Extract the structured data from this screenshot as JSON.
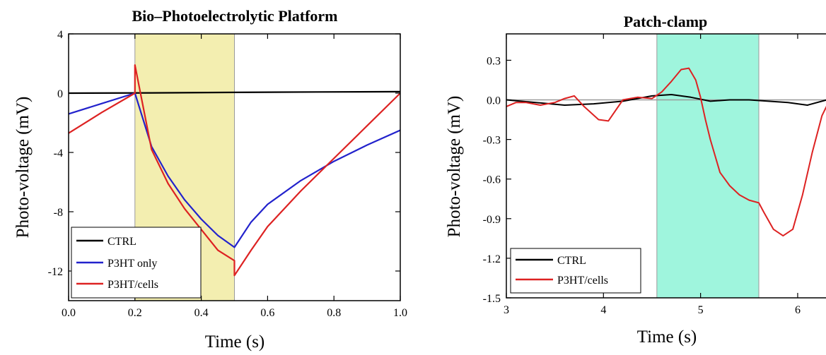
{
  "chart_data": [
    {
      "type": "line",
      "title": "Bio–Photoelectrolytic Platform",
      "xlabel": "Time (s)",
      "ylabel": "Photo-voltage (mV)",
      "xlim": [
        0.0,
        1.0
      ],
      "ylim": [
        -14,
        4
      ],
      "xticks": [
        "0.0",
        "0.2",
        "0.4",
        "0.6",
        "0.8",
        "1.0"
      ],
      "yticks": [
        "4",
        "0",
        "-4",
        "-8",
        "-12"
      ],
      "xtick_values": [
        0.0,
        0.2,
        0.4,
        0.6,
        0.8,
        1.0
      ],
      "ytick_values": [
        4,
        0,
        -4,
        -8,
        -12
      ],
      "grid": false,
      "legend_position": "bottom-left",
      "shaded_region": {
        "x0": 0.2,
        "x1": 0.5,
        "color": "#f3eeb0"
      },
      "series": [
        {
          "name": "CTRL",
          "color": "#000000",
          "x": [
            0.0,
            0.25,
            0.5,
            0.75,
            1.0
          ],
          "y": [
            0.0,
            0.02,
            0.05,
            0.08,
            0.1
          ]
        },
        {
          "name": "P3HT only",
          "color": "#2222cc",
          "x": [
            0.0,
            0.1,
            0.2,
            0.2,
            0.25,
            0.3,
            0.35,
            0.4,
            0.45,
            0.5,
            0.5,
            0.55,
            0.6,
            0.7,
            0.8,
            0.9,
            1.0
          ],
          "y": [
            -1.4,
            -0.7,
            0.0,
            0.0,
            -3.6,
            -5.6,
            -7.2,
            -8.5,
            -9.6,
            -10.4,
            -10.4,
            -8.7,
            -7.5,
            -5.9,
            -4.6,
            -3.5,
            -2.5
          ]
        },
        {
          "name": "P3HT/cells",
          "color": "#dd2222",
          "x": [
            0.0,
            0.1,
            0.2,
            0.2,
            0.25,
            0.3,
            0.35,
            0.4,
            0.45,
            0.5,
            0.5,
            0.55,
            0.6,
            0.7,
            0.8,
            0.9,
            1.0
          ],
          "y": [
            -2.7,
            -1.3,
            0.0,
            1.9,
            -3.8,
            -6.1,
            -7.8,
            -9.2,
            -10.6,
            -11.3,
            -12.3,
            -10.6,
            -9.0,
            -6.6,
            -4.4,
            -2.2,
            0.0
          ]
        }
      ]
    },
    {
      "type": "line",
      "title": "Patch-clamp",
      "xlabel": "Time (s)",
      "ylabel": "Photo-voltage (mV)",
      "xlim": [
        3.0,
        6.35
      ],
      "ylim": [
        -1.5,
        0.5
      ],
      "xticks": [
        "3",
        "4",
        "5",
        "6"
      ],
      "yticks": [
        "0.3",
        "0.0",
        "-0.3",
        "-0.6",
        "-0.9",
        "-1.2",
        "-1.5"
      ],
      "xtick_values": [
        3,
        4,
        5,
        6
      ],
      "ytick_values": [
        0.3,
        0.0,
        -0.3,
        -0.6,
        -0.9,
        -1.2,
        -1.5
      ],
      "grid": false,
      "legend_position": "bottom-left",
      "shaded_region": {
        "x0": 4.55,
        "x1": 5.6,
        "color": "#9ff5dd"
      },
      "series": [
        {
          "name": "CTRL",
          "color": "#000000",
          "x": [
            3.0,
            3.3,
            3.6,
            3.9,
            4.2,
            4.5,
            4.7,
            4.9,
            5.1,
            5.3,
            5.5,
            5.7,
            5.9,
            6.1,
            6.3,
            6.35
          ],
          "y": [
            0.0,
            -0.02,
            -0.04,
            -0.03,
            -0.01,
            0.03,
            0.04,
            0.02,
            -0.01,
            0.0,
            0.0,
            -0.01,
            -0.02,
            -0.04,
            0.0,
            0.02
          ]
        },
        {
          "name": "P3HT/cells",
          "color": "#dd2222",
          "x": [
            3.0,
            3.1,
            3.2,
            3.35,
            3.5,
            3.6,
            3.7,
            3.8,
            3.95,
            4.05,
            4.2,
            4.35,
            4.5,
            4.6,
            4.7,
            4.8,
            4.88,
            4.95,
            5.0,
            5.05,
            5.1,
            5.2,
            5.3,
            5.4,
            5.5,
            5.6,
            5.65,
            5.75,
            5.85,
            5.95,
            6.05,
            6.15,
            6.25,
            6.35
          ],
          "y": [
            -0.05,
            -0.02,
            -0.02,
            -0.04,
            -0.02,
            0.01,
            0.03,
            -0.05,
            -0.15,
            -0.16,
            0.0,
            0.02,
            0.01,
            0.06,
            0.14,
            0.23,
            0.24,
            0.15,
            0.02,
            -0.15,
            -0.3,
            -0.55,
            -0.65,
            -0.72,
            -0.76,
            -0.78,
            -0.85,
            -0.98,
            -1.03,
            -0.98,
            -0.72,
            -0.4,
            -0.12,
            0.03
          ]
        }
      ]
    }
  ]
}
